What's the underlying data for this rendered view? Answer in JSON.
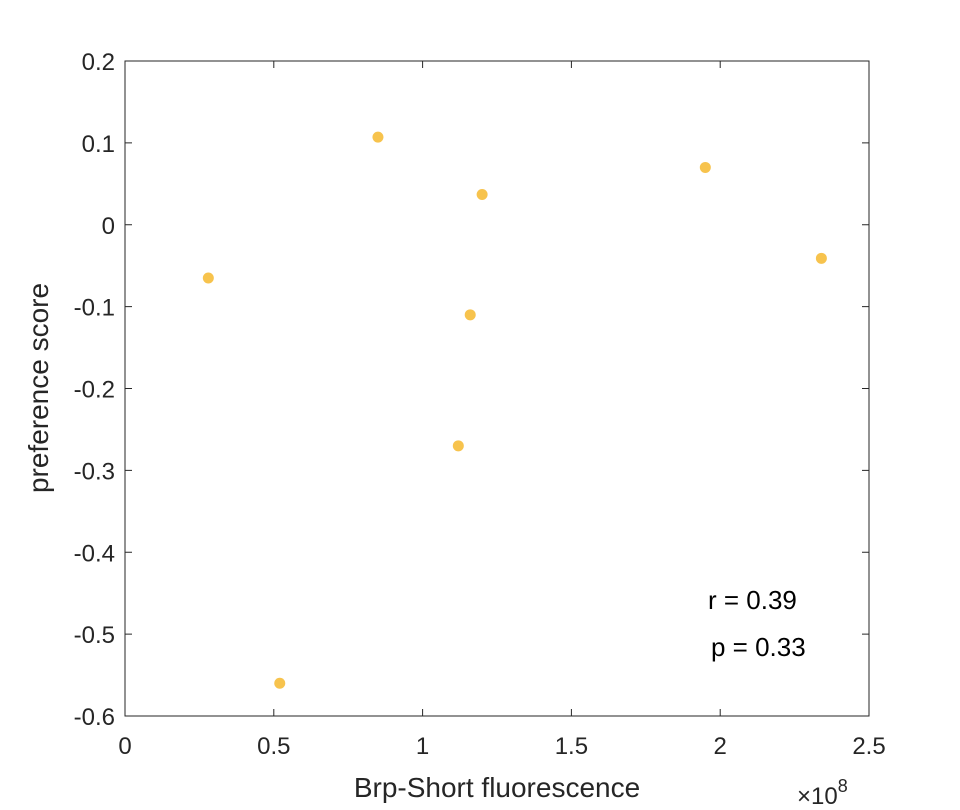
{
  "chart_data": {
    "type": "scatter",
    "title": "",
    "xlabel": "Brp-Short fluorescence",
    "ylabel": "preference score",
    "x_exponent_label": "×10",
    "x_exponent": "8",
    "xlim": [
      0,
      2.5
    ],
    "ylim": [
      -0.6,
      0.2
    ],
    "xticks": [
      0,
      0.5,
      1,
      1.5,
      2,
      2.5
    ],
    "xtick_labels": [
      "0",
      "0.5",
      "1",
      "1.5",
      "2",
      "2.5"
    ],
    "yticks": [
      0.2,
      0.1,
      0,
      -0.1,
      -0.2,
      -0.3,
      -0.4,
      -0.5,
      -0.6
    ],
    "ytick_labels": [
      "0.2",
      "0.1",
      "0",
      "-0.1",
      "-0.2",
      "-0.3",
      "-0.4",
      "-0.5",
      "-0.6"
    ],
    "grid": false,
    "legend": "none",
    "marker_color": "#F7C34D",
    "series": [
      {
        "points": [
          {
            "x": 0.28,
            "y": -0.065
          },
          {
            "x": 0.52,
            "y": -0.56
          },
          {
            "x": 0.85,
            "y": 0.107
          },
          {
            "x": 1.12,
            "y": -0.27
          },
          {
            "x": 1.16,
            "y": -0.11
          },
          {
            "x": 1.2,
            "y": 0.037
          },
          {
            "x": 1.95,
            "y": 0.07
          },
          {
            "x": 2.34,
            "y": -0.041
          }
        ]
      }
    ],
    "annotations": [
      "r = 0.39",
      "p = 0.33"
    ]
  }
}
